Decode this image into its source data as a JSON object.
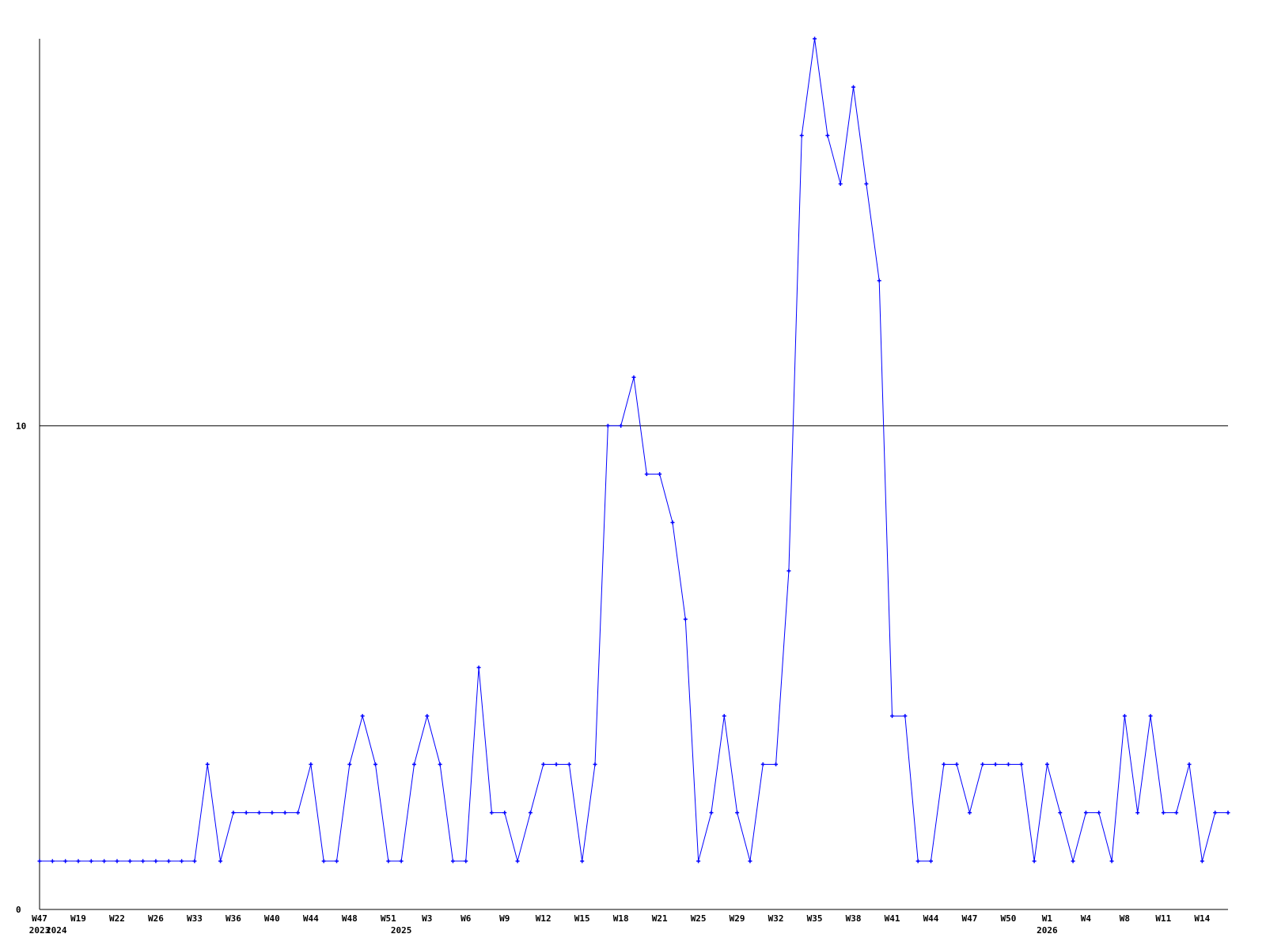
{
  "chart_data": {
    "type": "line",
    "title": "",
    "xlabel": "",
    "ylabel": "",
    "ylim": [
      0,
      18
    ],
    "grid": "horizontal line at 10",
    "legend": "none",
    "colors": {
      "series": "#0000ff",
      "axis": "#000000"
    },
    "y_ticks": [
      "0",
      "10"
    ],
    "x_tick_labels": [
      {
        "index": 0,
        "label": "W47"
      },
      {
        "index": 3,
        "label": "W19"
      },
      {
        "index": 6,
        "label": "W22"
      },
      {
        "index": 9,
        "label": "W26"
      },
      {
        "index": 12,
        "label": "W33"
      },
      {
        "index": 15,
        "label": "W36"
      },
      {
        "index": 18,
        "label": "W40"
      },
      {
        "index": 21,
        "label": "W44"
      },
      {
        "index": 24,
        "label": "W48"
      },
      {
        "index": 27,
        "label": "W51"
      },
      {
        "index": 30,
        "label": "W3"
      },
      {
        "index": 33,
        "label": "W6"
      },
      {
        "index": 36,
        "label": "W9"
      },
      {
        "index": 39,
        "label": "W12"
      },
      {
        "index": 42,
        "label": "W15"
      },
      {
        "index": 45,
        "label": "W18"
      },
      {
        "index": 48,
        "label": "W21"
      },
      {
        "index": 51,
        "label": "W25"
      },
      {
        "index": 54,
        "label": "W29"
      },
      {
        "index": 57,
        "label": "W32"
      },
      {
        "index": 60,
        "label": "W35"
      },
      {
        "index": 63,
        "label": "W38"
      },
      {
        "index": 66,
        "label": "W41"
      },
      {
        "index": 69,
        "label": "W44"
      },
      {
        "index": 72,
        "label": "W47"
      },
      {
        "index": 75,
        "label": "W50"
      },
      {
        "index": 78,
        "label": "W1"
      },
      {
        "index": 81,
        "label": "W4"
      },
      {
        "index": 84,
        "label": "W8"
      },
      {
        "index": 87,
        "label": "W11"
      },
      {
        "index": 90,
        "label": "W14"
      }
    ],
    "year_labels": [
      {
        "index": 0,
        "label": "2023"
      },
      {
        "index": 1.3,
        "label": "2024"
      },
      {
        "index": 28,
        "label": "2025"
      },
      {
        "index": 78,
        "label": "2026"
      }
    ],
    "values": [
      1,
      1,
      1,
      1,
      1,
      1,
      1,
      1,
      1,
      1,
      1,
      1,
      1,
      3,
      1,
      2,
      2,
      2,
      2,
      2,
      2,
      3,
      1,
      1,
      3,
      4,
      3,
      1,
      1,
      3,
      4,
      3,
      1,
      1,
      5,
      2,
      2,
      1,
      2,
      3,
      3,
      3,
      1,
      3,
      10,
      10,
      11,
      9,
      9,
      8,
      6,
      1,
      2,
      4,
      2,
      1,
      3,
      3,
      7,
      16,
      18,
      16,
      15,
      17,
      15,
      13,
      4,
      4,
      1,
      1,
      3,
      3,
      2,
      3,
      3,
      3,
      3,
      1,
      3,
      2,
      1,
      2,
      2,
      1,
      4,
      2,
      4,
      2,
      2,
      3,
      1,
      2,
      2
    ]
  }
}
